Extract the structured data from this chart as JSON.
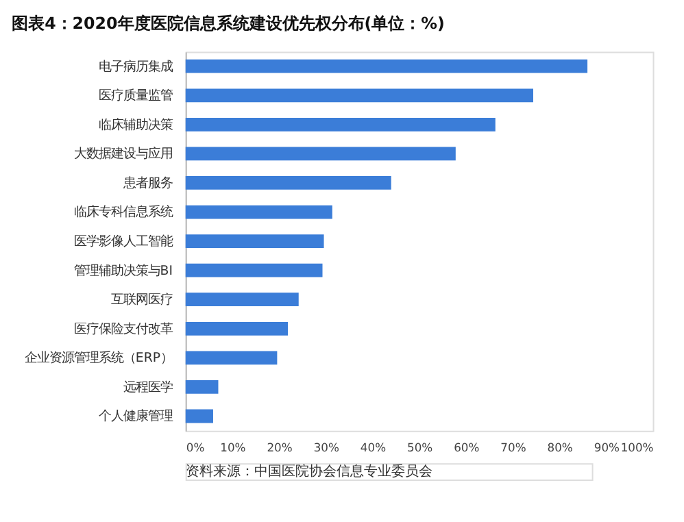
{
  "chart_data": {
    "type": "bar",
    "orientation": "horizontal",
    "title": "图表4：2020年度医院信息系统建设优先权分布(单位：%)",
    "categories": [
      "电子病历集成",
      "医疗质量监管",
      "临床辅助决策",
      "大数据建设与应用",
      "患者服务",
      "临床专科信息系统",
      "医学影像人工智能",
      "管理辅助决策与BI",
      "互联网医疗",
      "医疗保险支付改革",
      "企业资源管理系统（ERP）",
      "远程医学",
      "个人健康管理"
    ],
    "values": [
      86,
      74.4,
      66.3,
      57.8,
      44,
      31.4,
      29.6,
      29.3,
      24.2,
      21.9,
      19.6,
      7,
      5.9
    ],
    "color": "#3b7dd8",
    "xlim": [
      0,
      100
    ],
    "xticks": [
      {
        "value": 0,
        "label": "0%"
      },
      {
        "value": 10,
        "label": "10%"
      },
      {
        "value": 20,
        "label": "20%"
      },
      {
        "value": 30,
        "label": "30%"
      },
      {
        "value": 40,
        "label": "40%"
      },
      {
        "value": 50,
        "label": "50%"
      },
      {
        "value": 60,
        "label": "60%"
      },
      {
        "value": 70,
        "label": "70%"
      },
      {
        "value": 80,
        "label": "80%"
      },
      {
        "value": 90,
        "label": "90%"
      },
      {
        "value": 100,
        "label": "100%"
      }
    ],
    "grid": false,
    "annotations": [
      "资料来源：中国医院协会信息专业委员会"
    ]
  }
}
